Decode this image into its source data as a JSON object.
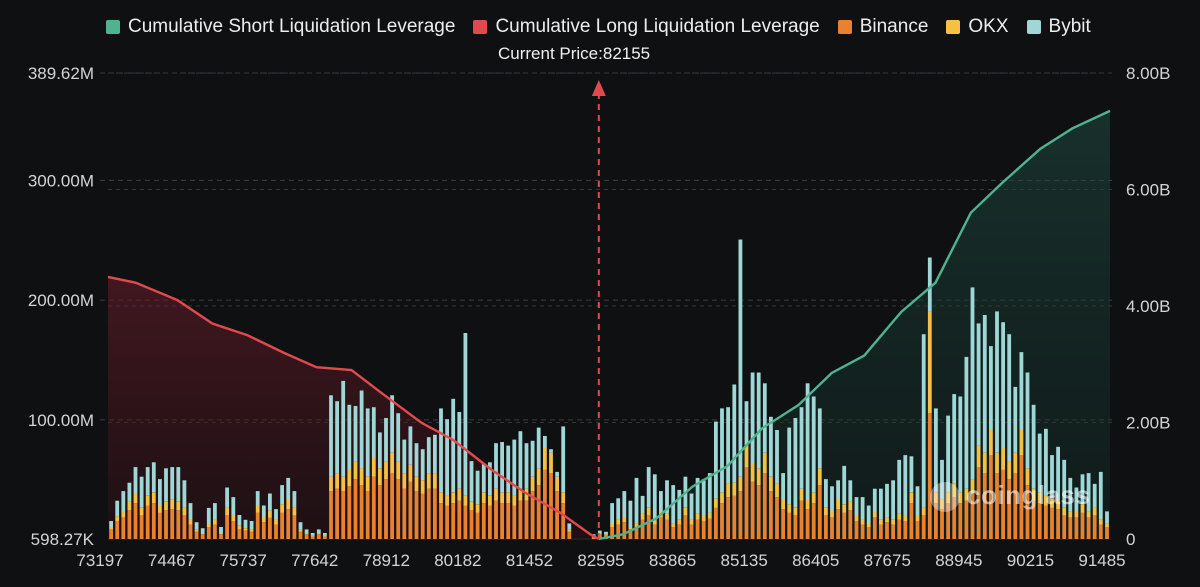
{
  "legend": [
    {
      "label": "Cumulative Short Liquidation Leverage",
      "color": "#4fb38f"
    },
    {
      "label": "Cumulative Long Liquidation Leverage",
      "color": "#e04a4e"
    },
    {
      "label": "Binance",
      "color": "#e8822f"
    },
    {
      "label": "OKX",
      "color": "#f5c143"
    },
    {
      "label": "Bybit",
      "color": "#9fd6d6"
    }
  ],
  "current_price_label": "Current Price:82155",
  "watermark": "coinglass",
  "chart_data": {
    "type": "bar",
    "stacked": true,
    "current_price": 82155,
    "x_tick_labels": [
      "73197",
      "74467",
      "75737",
      "77642",
      "78912",
      "80182",
      "81452",
      "82595",
      "83865",
      "85135",
      "86405",
      "87675",
      "88945",
      "90215",
      "91485"
    ],
    "y_left_ticks": [
      "598.27K",
      "100.00M",
      "200.00M",
      "300.00M",
      "389.62M"
    ],
    "y_left_range": [
      0.598,
      389.62
    ],
    "y_left_unit": "M",
    "y_right_ticks": [
      "0",
      "2.00B",
      "4.00B",
      "6.00B",
      "8.00B"
    ],
    "y_right_range": [
      0,
      8.0
    ],
    "y_right_unit": "B",
    "grid": true,
    "series": [
      {
        "name": "Binance",
        "values": [
          8,
          15,
          18,
          24,
          30,
          20,
          28,
          30,
          22,
          24,
          25,
          24,
          20,
          12,
          6,
          4,
          10,
          12,
          4,
          20,
          15,
          8,
          7,
          6,
          22,
          14,
          18,
          12,
          22,
          25,
          20,
          6,
          4,
          2,
          4,
          2,
          40,
          42,
          40,
          44,
          50,
          45,
          40,
          52,
          45,
          50,
          55,
          50,
          42,
          48,
          40,
          38,
          42,
          42,
          30,
          28,
          30,
          32,
          28,
          24,
          22,
          30,
          28,
          32,
          30,
          30,
          28,
          32,
          32,
          40,
          45,
          58,
          55,
          40,
          30,
          6,
          0,
          0,
          0,
          2,
          4,
          3,
          10,
          12,
          14,
          8,
          10,
          16,
          20,
          12,
          18,
          16,
          10,
          12,
          20,
          12,
          16,
          15,
          17,
          26,
          30,
          35,
          36,
          40,
          60,
          48,
          45,
          55,
          40,
          35,
          25,
          22,
          20,
          32,
          25,
          30,
          45,
          20,
          18,
          25,
          22,
          24,
          15,
          12,
          10,
          18,
          12,
          14,
          12,
          16,
          15,
          30,
          15,
          20,
          105,
          30,
          25,
          30,
          35,
          30,
          32,
          38,
          60,
          55,
          70,
          55,
          58,
          50,
          55,
          70,
          45,
          32,
          30,
          28,
          26,
          25,
          20,
          18,
          18,
          22,
          18,
          20,
          12,
          10
        ]
      },
      {
        "name": "OKX",
        "values": [
          2,
          4,
          5,
          7,
          8,
          6,
          8,
          9,
          6,
          7,
          8,
          7,
          6,
          4,
          2,
          1,
          3,
          4,
          1,
          6,
          5,
          3,
          2,
          2,
          6,
          4,
          6,
          4,
          7,
          8,
          6,
          2,
          1,
          1,
          1,
          1,
          12,
          13,
          12,
          14,
          15,
          14,
          12,
          16,
          14,
          15,
          17,
          15,
          13,
          14,
          12,
          11,
          13,
          13,
          9,
          8,
          9,
          10,
          8,
          7,
          7,
          9,
          8,
          10,
          9,
          9,
          8,
          10,
          10,
          12,
          14,
          18,
          17,
          12,
          9,
          2,
          0,
          0,
          0,
          1,
          1,
          1,
          3,
          4,
          4,
          2,
          3,
          5,
          6,
          4,
          5,
          5,
          3,
          4,
          6,
          4,
          5,
          5,
          5,
          8,
          9,
          11,
          11,
          12,
          18,
          15,
          14,
          17,
          12,
          11,
          8,
          7,
          6,
          10,
          8,
          9,
          14,
          6,
          5,
          8,
          7,
          7,
          5,
          4,
          3,
          5,
          4,
          4,
          4,
          5,
          5,
          9,
          5,
          6,
          85,
          9,
          8,
          9,
          11,
          9,
          10,
          12,
          18,
          17,
          21,
          17,
          18,
          15,
          17,
          21,
          14,
          10,
          9,
          8,
          8,
          8,
          6,
          5,
          5,
          7,
          5,
          6,
          4,
          3
        ]
      },
      {
        "name": "Bybit",
        "values": [
          5,
          13,
          17,
          16,
          22,
          26,
          24,
          25,
          22,
          28,
          27,
          29,
          23,
          14,
          6,
          4,
          13,
          14,
          5,
          17,
          15,
          9,
          7,
          7,
          12,
          10,
          14,
          9,
          16,
          18,
          14,
          6,
          3,
          2,
          3,
          2,
          68,
          60,
          80,
          54,
          46,
          65,
          57,
          42,
          30,
          36,
          48,
          40,
          28,
          32,
          28,
          26,
          30,
          32,
          70,
          64,
          78,
          64,
          136,
          34,
          28,
          24,
          28,
          38,
          42,
          39,
          47,
          48,
          38,
          30,
          34,
          10,
          3,
          4,
          55,
          5,
          0,
          0,
          0,
          1,
          2,
          2,
          17,
          18,
          22,
          22,
          38,
          15,
          34,
          38,
          17,
          28,
          32,
          25,
          26,
          22,
          30,
          30,
          33,
          64,
          70,
          64,
          82,
          198,
          37,
          76,
          80,
          58,
          50,
          45,
          22,
          64,
          75,
          68,
          97,
          80,
          50,
          24,
          21,
          16,
          32,
          18,
          15,
          19,
          15,
          19,
          26,
          28,
          33,
          45,
          50,
          30,
          24,
          145,
          45,
          70,
          33,
          64,
          75,
          80,
          110,
          160,
          102,
          115,
          70,
          118,
          105,
          106,
          55,
          65,
          80,
          70,
          49,
          56,
          36,
          44,
          40,
          28,
          20,
          25,
          32,
          20,
          40,
          10
        ]
      },
      {
        "name": "Cumulative Long Liquidation Leverage",
        "axis": "right",
        "x": [
          73197,
          73700,
          74467,
          75100,
          75737,
          76400,
          77000,
          77642,
          78200,
          78912,
          79500,
          80182,
          80800,
          81452,
          82000,
          82155
        ],
        "values": [
          4.5,
          4.4,
          4.1,
          3.7,
          3.5,
          3.2,
          2.95,
          2.9,
          2.5,
          2.0,
          1.7,
          1.2,
          0.8,
          0.45,
          0.08,
          0
        ]
      },
      {
        "name": "Cumulative Short Liquidation Leverage",
        "axis": "right",
        "x": [
          82155,
          82595,
          83200,
          83865,
          84500,
          85135,
          85800,
          86405,
          87000,
          87675,
          88300,
          88945,
          89500,
          90215,
          90800,
          91485
        ],
        "values": [
          0,
          0.08,
          0.35,
          0.9,
          1.25,
          1.9,
          2.3,
          2.85,
          3.15,
          3.9,
          4.4,
          5.6,
          6.1,
          6.7,
          7.05,
          7.35
        ]
      }
    ]
  }
}
